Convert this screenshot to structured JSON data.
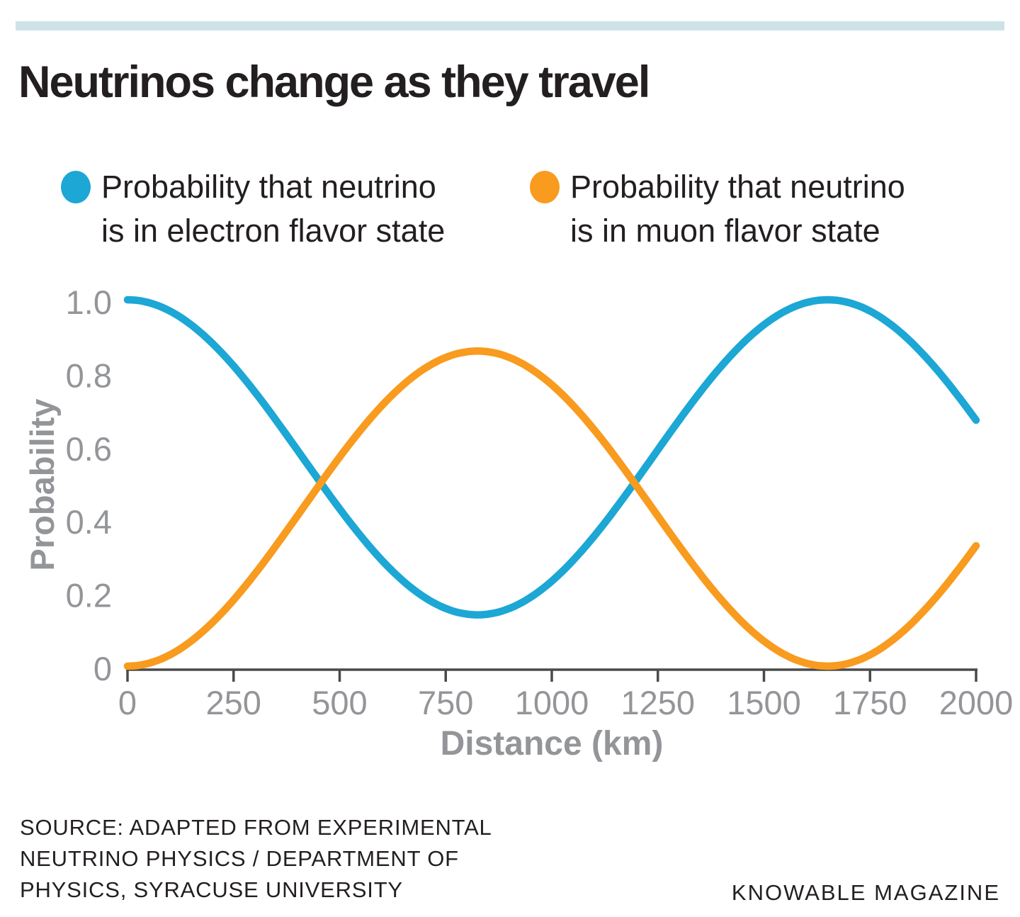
{
  "page": {
    "title": "Neutrinos change as they travel",
    "top_bar_color": "#CDE3E8"
  },
  "legend": {
    "items": [
      {
        "label_line1": "Probability that neutrino",
        "label_line2": "is in electron flavor state",
        "color": "#1CA7D5"
      },
      {
        "label_line1": "Probability that neutrino",
        "label_line2": "is in muon flavor state",
        "color": "#F89B1E"
      }
    ]
  },
  "footer": {
    "source_line1": "SOURCE: ADAPTED FROM EXPERIMENTAL",
    "source_line2": "NEUTRINO PHYSICS / DEPARTMENT OF",
    "source_line3": "PHYSICS, SYRACUSE UNIVERSITY",
    "credit": "KNOWABLE MAGAZINE"
  },
  "chart_data": {
    "type": "line",
    "title": "Neutrinos change as they travel",
    "xlabel": "Distance (km)",
    "ylabel": "Probability",
    "xlim": [
      0,
      2000
    ],
    "ylim": [
      0,
      1.0
    ],
    "x_ticks": [
      0,
      250,
      500,
      750,
      1000,
      1250,
      1500,
      1750,
      2000
    ],
    "y_ticks": [
      0,
      0.2,
      0.4,
      0.6,
      0.8,
      1.0
    ],
    "y_tick_labels": [
      "0",
      "0.2",
      "0.4",
      "0.6",
      "0.8",
      "1.0"
    ],
    "grid": false,
    "legend_position": "top",
    "axis_color": "#4A4A4C",
    "tick_label_color": "#939598",
    "oscillation": {
      "amplitude": 0.86,
      "wavelength_km": 1650
    },
    "series": [
      {
        "name": "Probability that neutrino is in electron flavor state",
        "color": "#1CA7D5",
        "kind": "one_minus_amp_sin2",
        "formula": "P(x) = 1 - 0.86*sin^2(pi*x/1650)",
        "x": [
          0,
          100,
          200,
          300,
          400,
          500,
          600,
          700,
          800,
          900,
          1000,
          1100,
          1200,
          1300,
          1400,
          1500,
          1600,
          1700,
          1800,
          1900,
          2000
        ],
        "y": [
          1.0,
          0.969,
          0.881,
          0.749,
          0.59,
          0.43,
          0.288,
          0.188,
          0.142,
          0.157,
          0.23,
          0.355,
          0.509,
          0.671,
          0.818,
          0.932,
          0.992,
          0.992,
          0.932,
          0.818,
          0.671
        ]
      },
      {
        "name": "Probability that neutrino is in muon flavor state",
        "color": "#F89B1E",
        "kind": "amp_sin2",
        "formula": "P(x) = 0.86*sin^2(pi*x/1650)",
        "x": [
          0,
          100,
          200,
          300,
          400,
          500,
          600,
          700,
          800,
          900,
          1000,
          1100,
          1200,
          1300,
          1400,
          1500,
          1600,
          1700,
          1800,
          1900,
          2000
        ],
        "y": [
          0.0,
          0.031,
          0.119,
          0.251,
          0.41,
          0.57,
          0.712,
          0.812,
          0.858,
          0.843,
          0.77,
          0.645,
          0.491,
          0.329,
          0.182,
          0.068,
          0.008,
          0.008,
          0.068,
          0.182,
          0.329
        ]
      }
    ]
  }
}
